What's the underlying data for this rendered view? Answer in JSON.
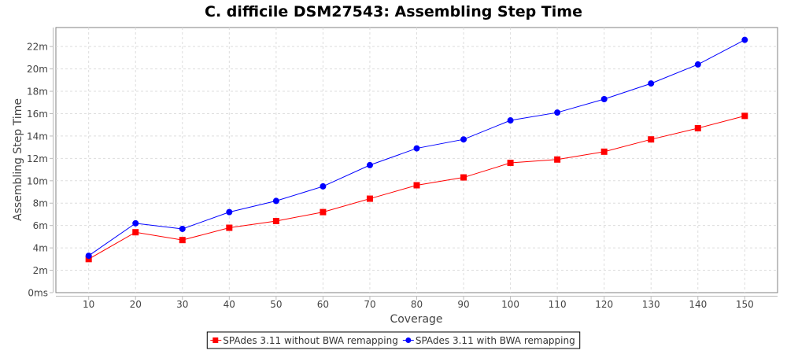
{
  "chart_data": {
    "type": "line",
    "title": "C. difficile DSM27543: Assembling Step Time",
    "xlabel": "Coverage",
    "ylabel": "Assembling Step Time",
    "x": [
      10,
      20,
      30,
      40,
      50,
      60,
      70,
      80,
      90,
      100,
      110,
      120,
      130,
      140,
      150
    ],
    "xlim": [
      3,
      157
    ],
    "ylim": [
      0,
      23.7
    ],
    "y_unit": "minutes",
    "y_ticks": [
      0,
      2,
      4,
      6,
      8,
      10,
      12,
      14,
      16,
      18,
      20,
      22
    ],
    "y_tick_labels": [
      "0ms",
      "2m",
      "4m",
      "6m",
      "8m",
      "10m",
      "12m",
      "14m",
      "16m",
      "18m",
      "20m",
      "22m"
    ],
    "x_tick_labels": [
      "10",
      "20",
      "30",
      "40",
      "50",
      "60",
      "70",
      "80",
      "90",
      "100",
      "110",
      "120",
      "130",
      "140",
      "150"
    ],
    "grid": true,
    "legend_position": "bottom",
    "series": [
      {
        "name": "SPAdes 3.11 without BWA remapping",
        "color": "#ff0000",
        "marker": "square",
        "values": [
          3.0,
          5.4,
          4.7,
          5.8,
          6.4,
          7.2,
          8.4,
          9.6,
          10.3,
          11.6,
          11.9,
          12.6,
          13.7,
          14.7,
          15.8
        ]
      },
      {
        "name": "SPAdes 3.11 with BWA remapping",
        "color": "#0000ff",
        "marker": "circle",
        "values": [
          3.3,
          6.2,
          5.7,
          7.2,
          8.2,
          9.5,
          11.4,
          12.9,
          13.7,
          15.4,
          16.1,
          17.3,
          18.7,
          20.4,
          22.6
        ]
      }
    ]
  }
}
